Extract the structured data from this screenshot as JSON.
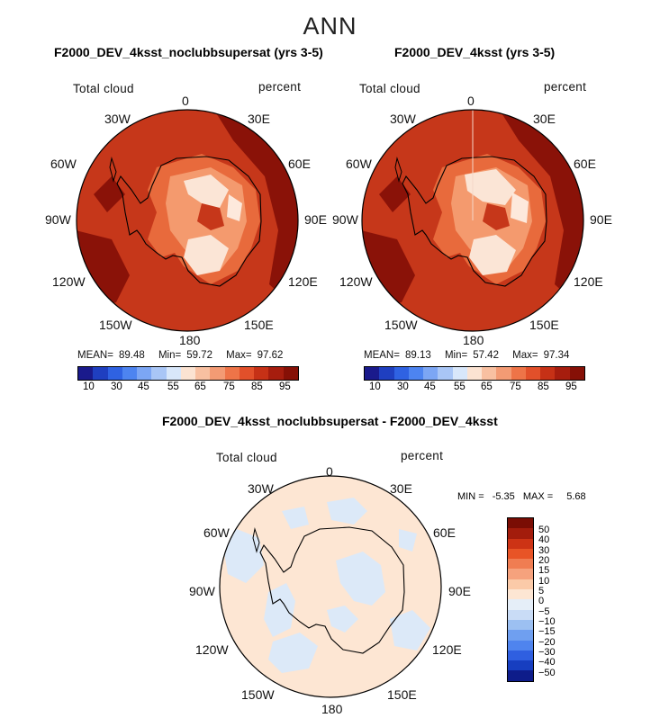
{
  "figure": {
    "supertitle": "ANN",
    "panels": [
      {
        "title": "F2000_DEV_4ksst_noclubbsupersat (yrs 3-5)",
        "variable": "Total cloud",
        "units": "percent",
        "stats": {
          "mean_label": "MEAN=",
          "mean": "89.48",
          "min_label": "Min=",
          "min": "59.72",
          "max_label": "Max=",
          "max": "97.62"
        },
        "colorbar_ticks": [
          "10",
          "30",
          "45",
          "55",
          "65",
          "75",
          "85",
          "95"
        ]
      },
      {
        "title": "F2000_DEV_4ksst (yrs 3-5)",
        "variable": "Total cloud",
        "units": "percent",
        "stats": {
          "mean_label": "MEAN=",
          "mean": "89.13",
          "min_label": "Min=",
          "min": "57.42",
          "max_label": "Max=",
          "max": "97.34"
        },
        "colorbar_ticks": [
          "10",
          "30",
          "45",
          "55",
          "65",
          "75",
          "85",
          "95"
        ]
      },
      {
        "title": "F2000_DEV_4ksst_noclubbsupersat - F2000_DEV_4ksst",
        "variable": "Total cloud",
        "units": "percent",
        "minmax": {
          "min_label": "MIN =",
          "min": "-5.35",
          "max_label": "MAX =",
          "max": "5.68"
        },
        "colorbar_ticks": [
          "50",
          "40",
          "30",
          "20",
          "15",
          "10",
          "5",
          "0",
          "−5",
          "−10",
          "−15",
          "−20",
          "−30",
          "−40",
          "−50"
        ]
      }
    ],
    "longitude_labels": [
      "0",
      "30E",
      "60E",
      "90E",
      "120E",
      "150E",
      "180",
      "150W",
      "120W",
      "90W",
      "60W",
      "30W"
    ],
    "colors": {
      "abs_scale": [
        "#1a1a8c",
        "#1f3fc0",
        "#2f62e2",
        "#4d84f0",
        "#7ca6f4",
        "#a9c6f6",
        "#d8e7fa",
        "#fbe3d2",
        "#f8c0a1",
        "#f39b74",
        "#ee7448",
        "#e2502a",
        "#c63116",
        "#a61d0e",
        "#861006"
      ],
      "diff_scale": [
        "#7a0d04",
        "#a31c0c",
        "#cd3315",
        "#e85426",
        "#f07d52",
        "#f6a27d",
        "#fbcaa8",
        "#fde6d3",
        "#e5eef8",
        "#c9dcf6",
        "#9cc0f2",
        "#6f9ff0",
        "#4f84ee",
        "#2f5fe0",
        "#173ec0",
        "#0e1c8a"
      ]
    }
  }
}
